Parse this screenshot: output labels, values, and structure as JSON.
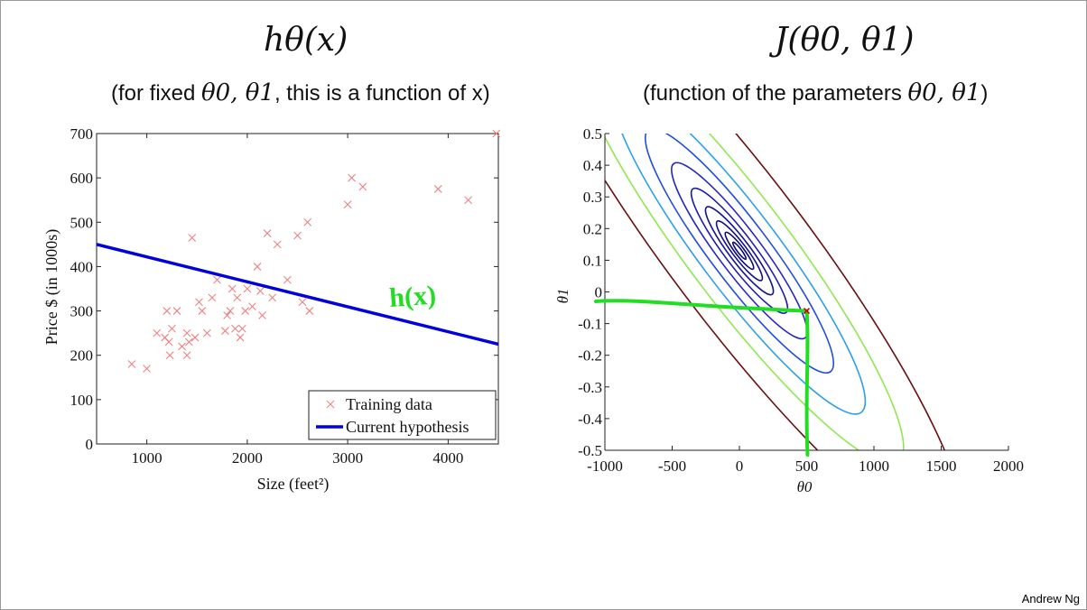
{
  "slide": {
    "left_title": "hθ(x)",
    "left_subtitle_prefix": "(for fixed ",
    "left_subtitle_math": "θ0, θ1",
    "left_subtitle_suffix": ", this is a function of x)",
    "right_title": "J(θ0, θ1)",
    "right_subtitle_prefix": "(function of the parameters ",
    "right_subtitle_math": "θ0, θ1",
    "right_subtitle_suffix": ")",
    "credit": "Andrew Ng",
    "annotation": "h(x)"
  },
  "chart_data": [
    {
      "type": "scatter",
      "xlabel": "Size (feet²)",
      "ylabel": "Price $ (in 1000s)",
      "xlim": [
        500,
        4500
      ],
      "ylim": [
        0,
        700
      ],
      "x_ticks": [
        1000,
        2000,
        3000,
        4000
      ],
      "y_ticks": [
        0,
        100,
        200,
        300,
        400,
        500,
        600,
        700
      ],
      "legend_position": "bottom-right",
      "colors": {
        "training": "#f08080",
        "hypothesis": "#0000dd",
        "annotation": "#22dd22"
      },
      "series": [
        {
          "name": "Training data",
          "marker": "x",
          "points": [
            [
              850,
              180
            ],
            [
              1000,
              170
            ],
            [
              1100,
              250
            ],
            [
              1180,
              240
            ],
            [
              1200,
              300
            ],
            [
              1220,
              230
            ],
            [
              1230,
              200
            ],
            [
              1250,
              260
            ],
            [
              1300,
              300
            ],
            [
              1350,
              220
            ],
            [
              1400,
              200
            ],
            [
              1400,
              250
            ],
            [
              1420,
              230
            ],
            [
              1450,
              465
            ],
            [
              1480,
              240
            ],
            [
              1520,
              320
            ],
            [
              1550,
              300
            ],
            [
              1600,
              250
            ],
            [
              1650,
              330
            ],
            [
              1700,
              370
            ],
            [
              1780,
              255
            ],
            [
              1800,
              290
            ],
            [
              1830,
              300
            ],
            [
              1850,
              350
            ],
            [
              1880,
              260
            ],
            [
              1900,
              330
            ],
            [
              1930,
              240
            ],
            [
              1950,
              260
            ],
            [
              1980,
              300
            ],
            [
              2000,
              350
            ],
            [
              2050,
              310
            ],
            [
              2100,
              400
            ],
            [
              2130,
              345
            ],
            [
              2150,
              290
            ],
            [
              2200,
              475
            ],
            [
              2250,
              330
            ],
            [
              2300,
              450
            ],
            [
              2400,
              370
            ],
            [
              2500,
              470
            ],
            [
              2550,
              320
            ],
            [
              2600,
              500
            ],
            [
              2620,
              300
            ],
            [
              3000,
              540
            ],
            [
              3040,
              600
            ],
            [
              3150,
              580
            ],
            [
              3900,
              575
            ],
            [
              4200,
              550
            ],
            [
              4480,
              700
            ]
          ]
        },
        {
          "name": "Current hypothesis",
          "type": "line",
          "x": [
            500,
            4500
          ],
          "y": [
            450,
            225
          ]
        }
      ]
    },
    {
      "type": "contour",
      "xlabel": "θ0",
      "ylabel": "θ1",
      "xlim": [
        -1000,
        2000
      ],
      "ylim": [
        -0.5,
        0.5
      ],
      "x_ticks": [
        -1000,
        -500,
        0,
        500,
        1000,
        1500,
        2000
      ],
      "y_ticks": [
        0.5,
        0.4,
        0.3,
        0.2,
        0.1,
        0,
        -0.1,
        -0.2,
        -0.3,
        -0.4,
        -0.5
      ],
      "y_tick_labels": [
        "0.5",
        "0.4",
        "0.3",
        "0.2",
        "0.1",
        "0",
        "-0.1",
        "-0.2",
        "-0.3",
        "-0.4",
        "-0.5"
      ],
      "center": [
        0,
        0.13
      ],
      "levels": [
        {
          "a": 0.06,
          "color": "#0a0a78"
        },
        {
          "a": 0.13,
          "color": "#0a0a78"
        },
        {
          "a": 0.21,
          "color": "#10108a"
        },
        {
          "a": 0.31,
          "color": "#141496"
        },
        {
          "a": 0.44,
          "color": "#1c1cb0"
        },
        {
          "a": 0.62,
          "color": "#2424c8"
        },
        {
          "a": 0.86,
          "color": "#1e4ee0"
        },
        {
          "a": 1.15,
          "color": "#2aa0e8"
        },
        {
          "a": 1.5,
          "color": "#8ee84e"
        },
        {
          "a": 2.05,
          "color": "#6b0f0f"
        }
      ],
      "marked_point": [
        500,
        -0.06
      ],
      "marker_color": "#cc0000",
      "annotation_color": "#22dd22"
    }
  ]
}
